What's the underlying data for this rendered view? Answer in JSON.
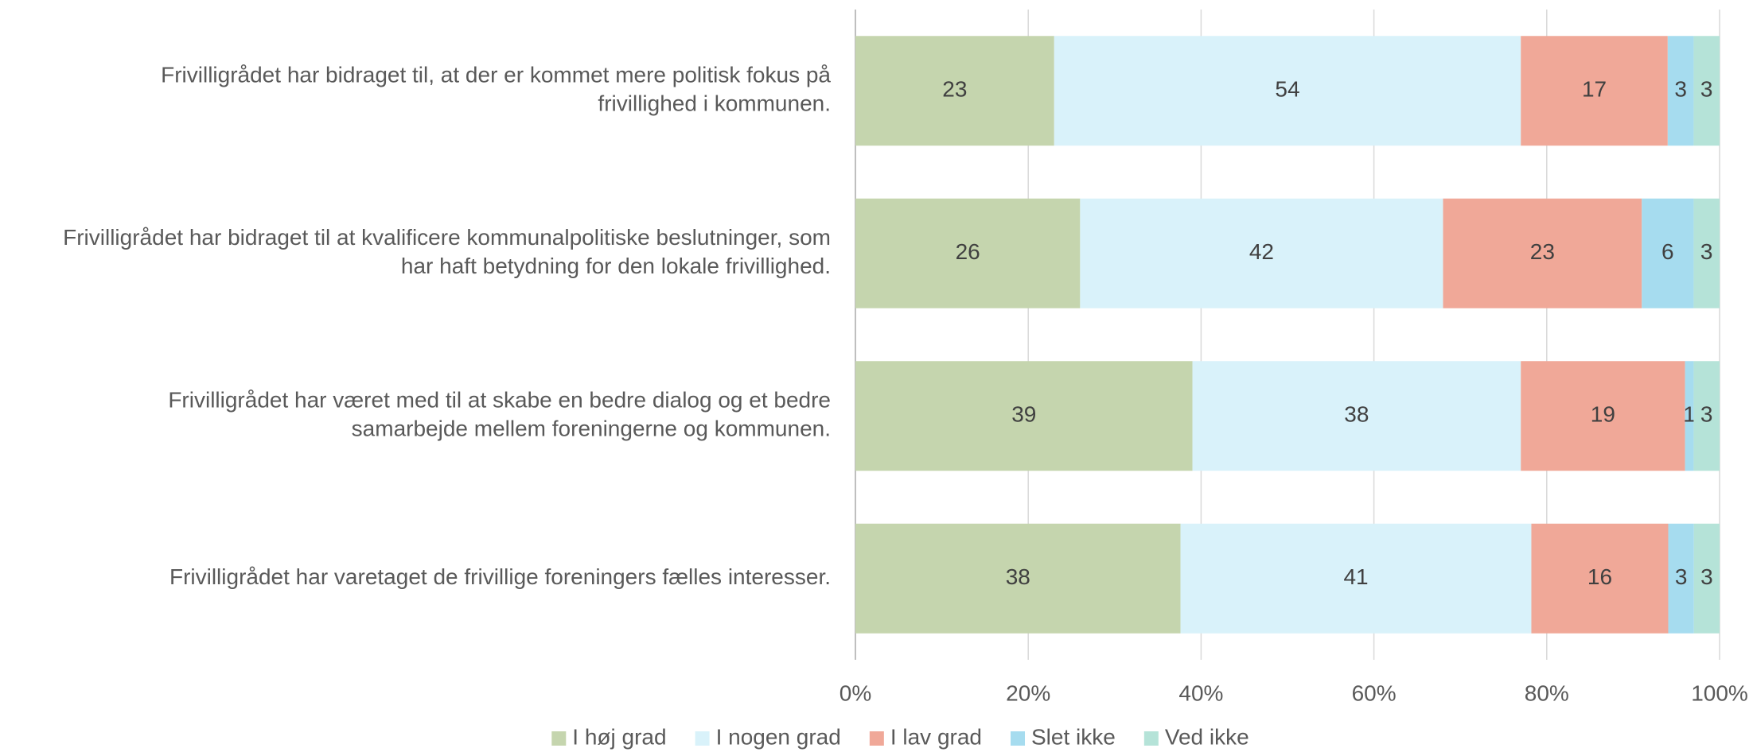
{
  "chart_data": {
    "type": "bar",
    "orientation": "horizontal",
    "stacking": "percent",
    "categories": [
      [
        "Frivilligrådet har bidraget til, at der er kommet mere politisk fokus på",
        "frivillighed i kommunen."
      ],
      [
        "Frivilligrådet har bidraget til at kvalificere kommunalpolitiske beslutninger, som",
        "har haft betydning for den lokale frivillighed."
      ],
      [
        "Frivilligrådet har været med til at skabe en bedre dialog og et bedre",
        "samarbejde mellem foreningerne og kommunen."
      ],
      [
        "Frivilligrådet har varetaget de frivillige foreningers fælles interesser."
      ]
    ],
    "series": [
      {
        "name": "I høj grad",
        "color": "#c5d5ae",
        "values": [
          23,
          26,
          39,
          38
        ]
      },
      {
        "name": "I nogen grad",
        "color": "#d9f2fa",
        "values": [
          54,
          42,
          38,
          41
        ]
      },
      {
        "name": "I lav grad",
        "color": "#f0a898",
        "values": [
          17,
          23,
          19,
          16
        ]
      },
      {
        "name": "Slet ikke",
        "color": "#a6dcef",
        "values": [
          3,
          6,
          1,
          3
        ]
      },
      {
        "name": "Ved ikke",
        "color": "#b5e3d8",
        "values": [
          3,
          3,
          3,
          3
        ]
      }
    ],
    "xlim": [
      0,
      100
    ],
    "xticks": [
      {
        "value": 0,
        "label": "0%"
      },
      {
        "value": 20,
        "label": "20%"
      },
      {
        "value": 40,
        "label": "40%"
      },
      {
        "value": 60,
        "label": "60%"
      },
      {
        "value": 80,
        "label": "80%"
      },
      {
        "value": 100,
        "label": "100%"
      }
    ],
    "grid": true,
    "legend": "bottom"
  }
}
